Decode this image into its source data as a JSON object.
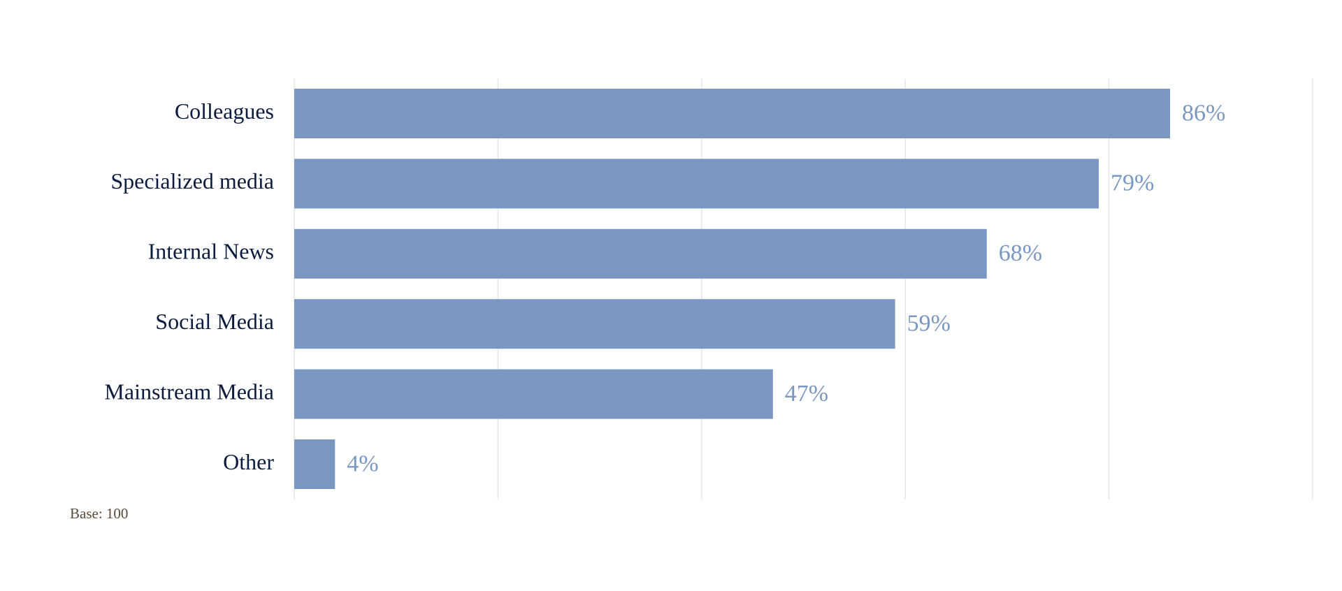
{
  "chart_data": {
    "type": "bar",
    "orientation": "horizontal",
    "categories": [
      "Colleagues",
      "Specialized media",
      "Internal News",
      "Social Media",
      "Mainstream Media",
      "Other"
    ],
    "values": [
      86,
      79,
      68,
      59,
      47,
      4
    ],
    "value_labels": [
      "86%",
      "79%",
      "68%",
      "59%",
      "47%",
      "4%"
    ],
    "color": "#7a97c2",
    "xlim": [
      0,
      100
    ],
    "xticks": [
      0,
      20,
      40,
      60,
      80,
      100
    ],
    "grid": true,
    "note": "Base: 100"
  }
}
